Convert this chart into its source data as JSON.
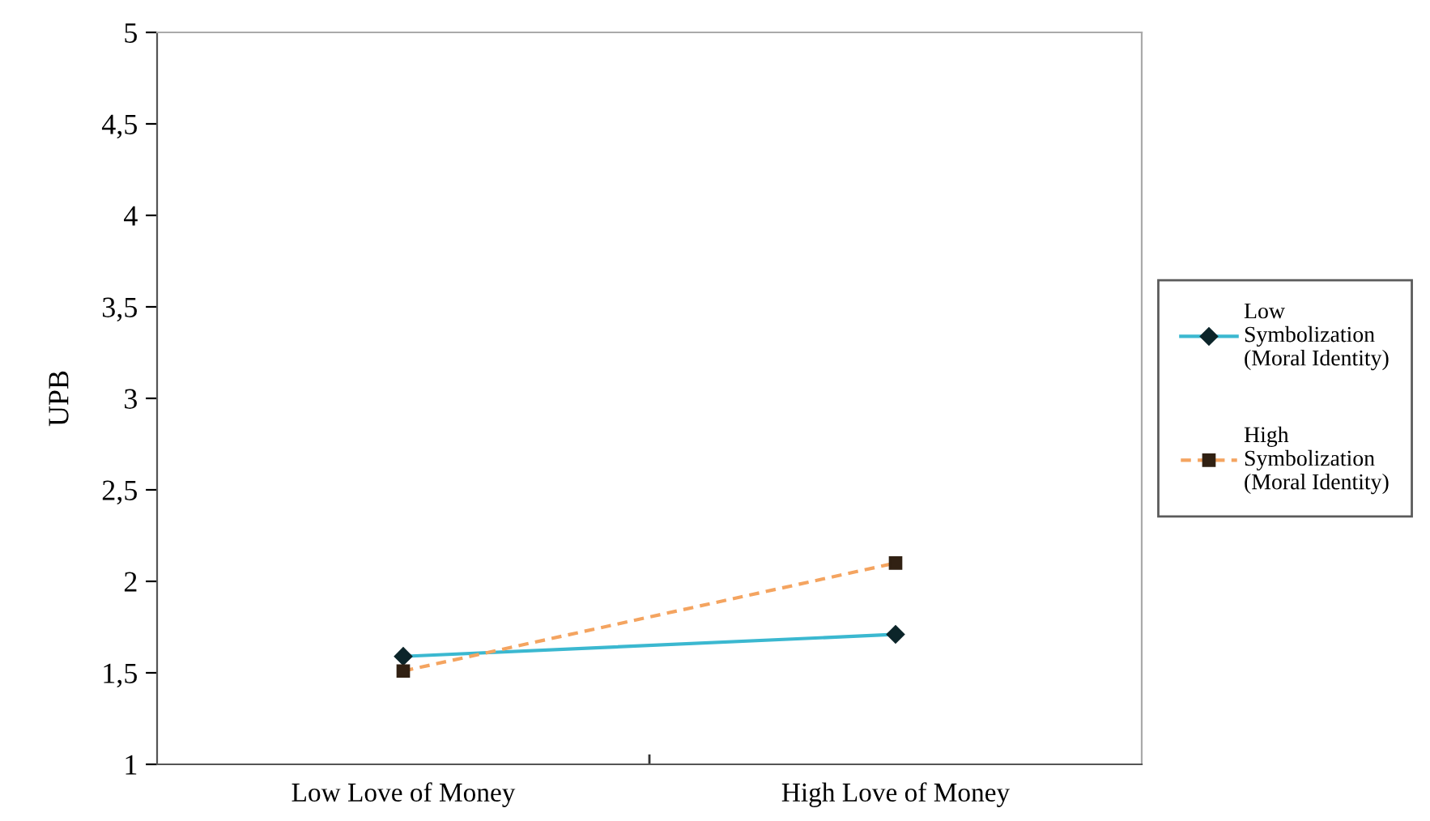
{
  "chart_data": {
    "type": "line",
    "ylabel": "UPB",
    "categories": [
      "Low Love of Money",
      "High Love of Money"
    ],
    "series": [
      {
        "name": "Low\nSymbolization\n(Moral Identity)",
        "color": "#3bb8d0",
        "marker": "diamond",
        "line_style": "solid",
        "values": [
          1.59,
          1.71
        ]
      },
      {
        "name": "High\nSymbolization\n(Moral Identity)",
        "color": "#f4a460",
        "marker": "square",
        "line_style": "dashed",
        "values": [
          1.51,
          2.1
        ]
      }
    ],
    "ylim": [
      1,
      5
    ],
    "yticks": [
      1,
      {
        "value": 1.5,
        "label": "1,5"
      },
      2,
      {
        "value": 2.5,
        "label": "2,5"
      },
      3,
      {
        "value": 3.5,
        "label": "3,5"
      },
      4,
      {
        "value": 4.5,
        "label": "4,5"
      },
      5
    ],
    "grid": false,
    "legend": "right"
  }
}
